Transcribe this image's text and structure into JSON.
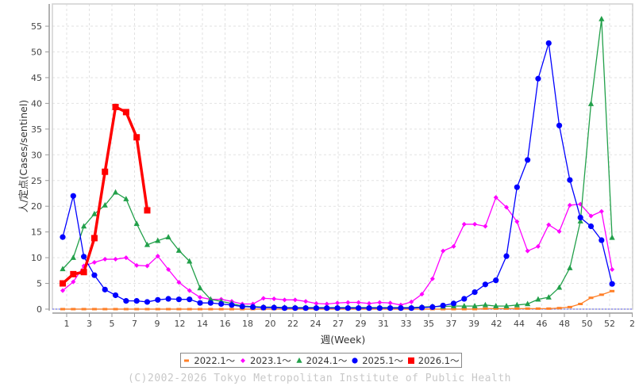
{
  "chart_data": {
    "type": "line",
    "title": "",
    "xlabel": "週(Week)",
    "ylabel": "人/定点(Cases/sentinel)",
    "ylim": [
      0,
      58
    ],
    "yticks": [
      0,
      5,
      10,
      15,
      20,
      25,
      30,
      35,
      40,
      45,
      50,
      55
    ],
    "xtick_labels": [
      "1",
      "3",
      "5",
      "7",
      "9",
      "12",
      "14",
      "16",
      "18",
      "20",
      "22",
      "24",
      "27",
      "29",
      "31",
      "33",
      "35",
      "37",
      "39",
      "42",
      "44",
      "46",
      "48",
      "50",
      "52",
      "2"
    ],
    "grid": true,
    "legend_placement": "bottom",
    "series": [
      {
        "name": "2022.1～",
        "color": "#ff7f27",
        "marker": "square-small",
        "values": [
          0,
          0,
          0,
          0,
          0,
          0,
          0,
          0,
          0,
          0,
          0,
          0,
          0,
          0,
          0,
          0,
          0,
          0,
          0,
          0,
          0,
          0,
          0,
          0,
          0,
          0,
          0,
          0,
          0,
          0,
          0,
          0,
          0,
          0,
          0,
          0,
          0,
          0,
          0,
          0,
          0.1,
          0.1,
          0.1,
          0.1,
          0.1,
          0.1,
          0.1,
          0.2,
          0.4,
          1.0,
          2.2,
          2.8,
          3.5
        ]
      },
      {
        "name": "2023.1～",
        "color": "#ff00ff",
        "marker": "diamond",
        "values": [
          3.6,
          5.3,
          8.4,
          9.1,
          9.7,
          9.7,
          10.0,
          8.5,
          8.4,
          10.3,
          7.7,
          5.2,
          3.6,
          2.3,
          1.9,
          1.9,
          1.5,
          1.0,
          1.0,
          2.1,
          2.0,
          1.8,
          1.8,
          1.5,
          1.1,
          1.0,
          1.2,
          1.3,
          1.3,
          1.1,
          1.3,
          1.2,
          0.8,
          1.4,
          2.9,
          5.9,
          11.3,
          12.2,
          16.5,
          16.5,
          16.1,
          21.7,
          19.8,
          17.0,
          11.3,
          12.2,
          16.4,
          15.1,
          20.2,
          20.4,
          18.1,
          19.0,
          7.7
        ]
      },
      {
        "name": "2024.1～",
        "color": "#22a04a",
        "marker": "triangle",
        "values": [
          7.8,
          10.0,
          16.1,
          18.5,
          20.2,
          22.7,
          21.4,
          16.6,
          12.5,
          13.3,
          14.0,
          11.4,
          9.3,
          4.1,
          1.9,
          1.5,
          1.1,
          0.6,
          0.5,
          0.4,
          0.4,
          0.3,
          0.3,
          0.3,
          0.3,
          0.3,
          0.3,
          0.3,
          0.3,
          0.3,
          0.3,
          0.3,
          0.3,
          0.3,
          0.4,
          0.5,
          0.5,
          0.6,
          0.6,
          0.6,
          0.8,
          0.6,
          0.6,
          0.8,
          1.0,
          1.9,
          2.3,
          4.2,
          8.0,
          17.1,
          39.9,
          56.4,
          13.9
        ]
      },
      {
        "name": "2025.1～",
        "color": "#0000ff",
        "marker": "circle",
        "values": [
          14.0,
          22.0,
          10.2,
          6.6,
          3.8,
          2.7,
          1.6,
          1.6,
          1.4,
          1.8,
          2.0,
          1.9,
          1.9,
          1.2,
          1.2,
          1.0,
          0.8,
          0.5,
          0.4,
          0.3,
          0.3,
          0.2,
          0.2,
          0.2,
          0.2,
          0.2,
          0.2,
          0.2,
          0.2,
          0.2,
          0.2,
          0.2,
          0.2,
          0.2,
          0.3,
          0.4,
          0.7,
          1.1,
          2.0,
          3.3,
          4.8,
          5.6,
          10.3,
          23.7,
          29.0,
          44.8,
          51.7,
          35.7,
          25.1,
          17.8,
          16.1,
          13.4,
          4.9
        ]
      },
      {
        "name": "2026.1～",
        "color": "#ff0000",
        "marker": "square",
        "values": [
          5.0,
          6.8,
          7.2,
          13.8,
          26.7,
          39.3,
          38.3,
          33.4,
          19.2
        ]
      }
    ]
  },
  "footer": {
    "copyright": "(C)2002-2026 Tokyo Metropolitan Institute of Public Health"
  }
}
